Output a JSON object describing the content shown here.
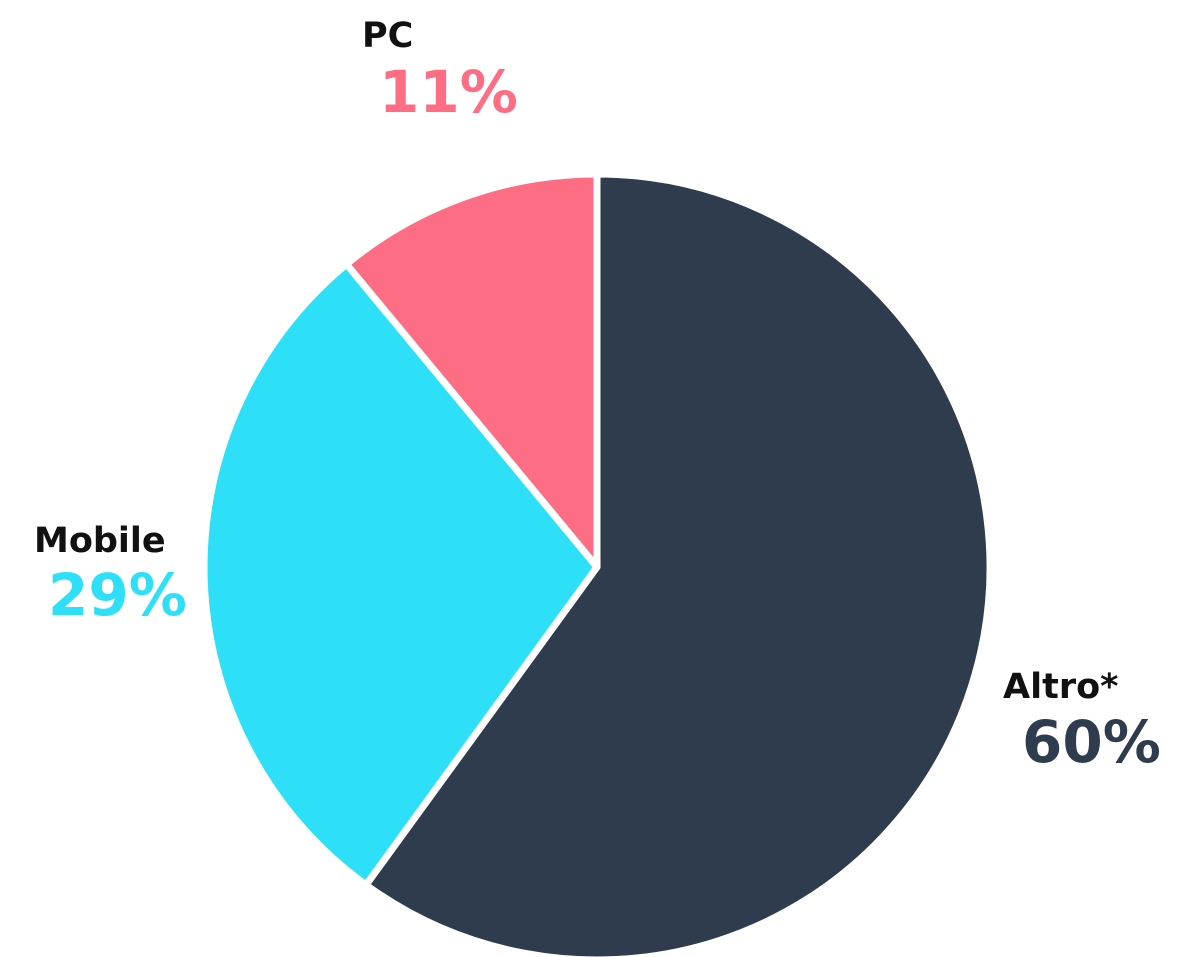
{
  "chart_data": {
    "type": "pie",
    "slices": [
      {
        "label": "Altro*",
        "value": 60,
        "value_label": "60%",
        "color": "#2e3c4e"
      },
      {
        "label": "Mobile",
        "value": 29,
        "value_label": "29%",
        "color": "#2ee0f7"
      },
      {
        "label": "PC",
        "value": 11,
        "value_label": "11%",
        "color": "#fd6e85"
      }
    ],
    "start_angle": "12 o'clock",
    "direction": "clockwise",
    "slice_separator_color": "#ffffff",
    "legend": "none"
  }
}
